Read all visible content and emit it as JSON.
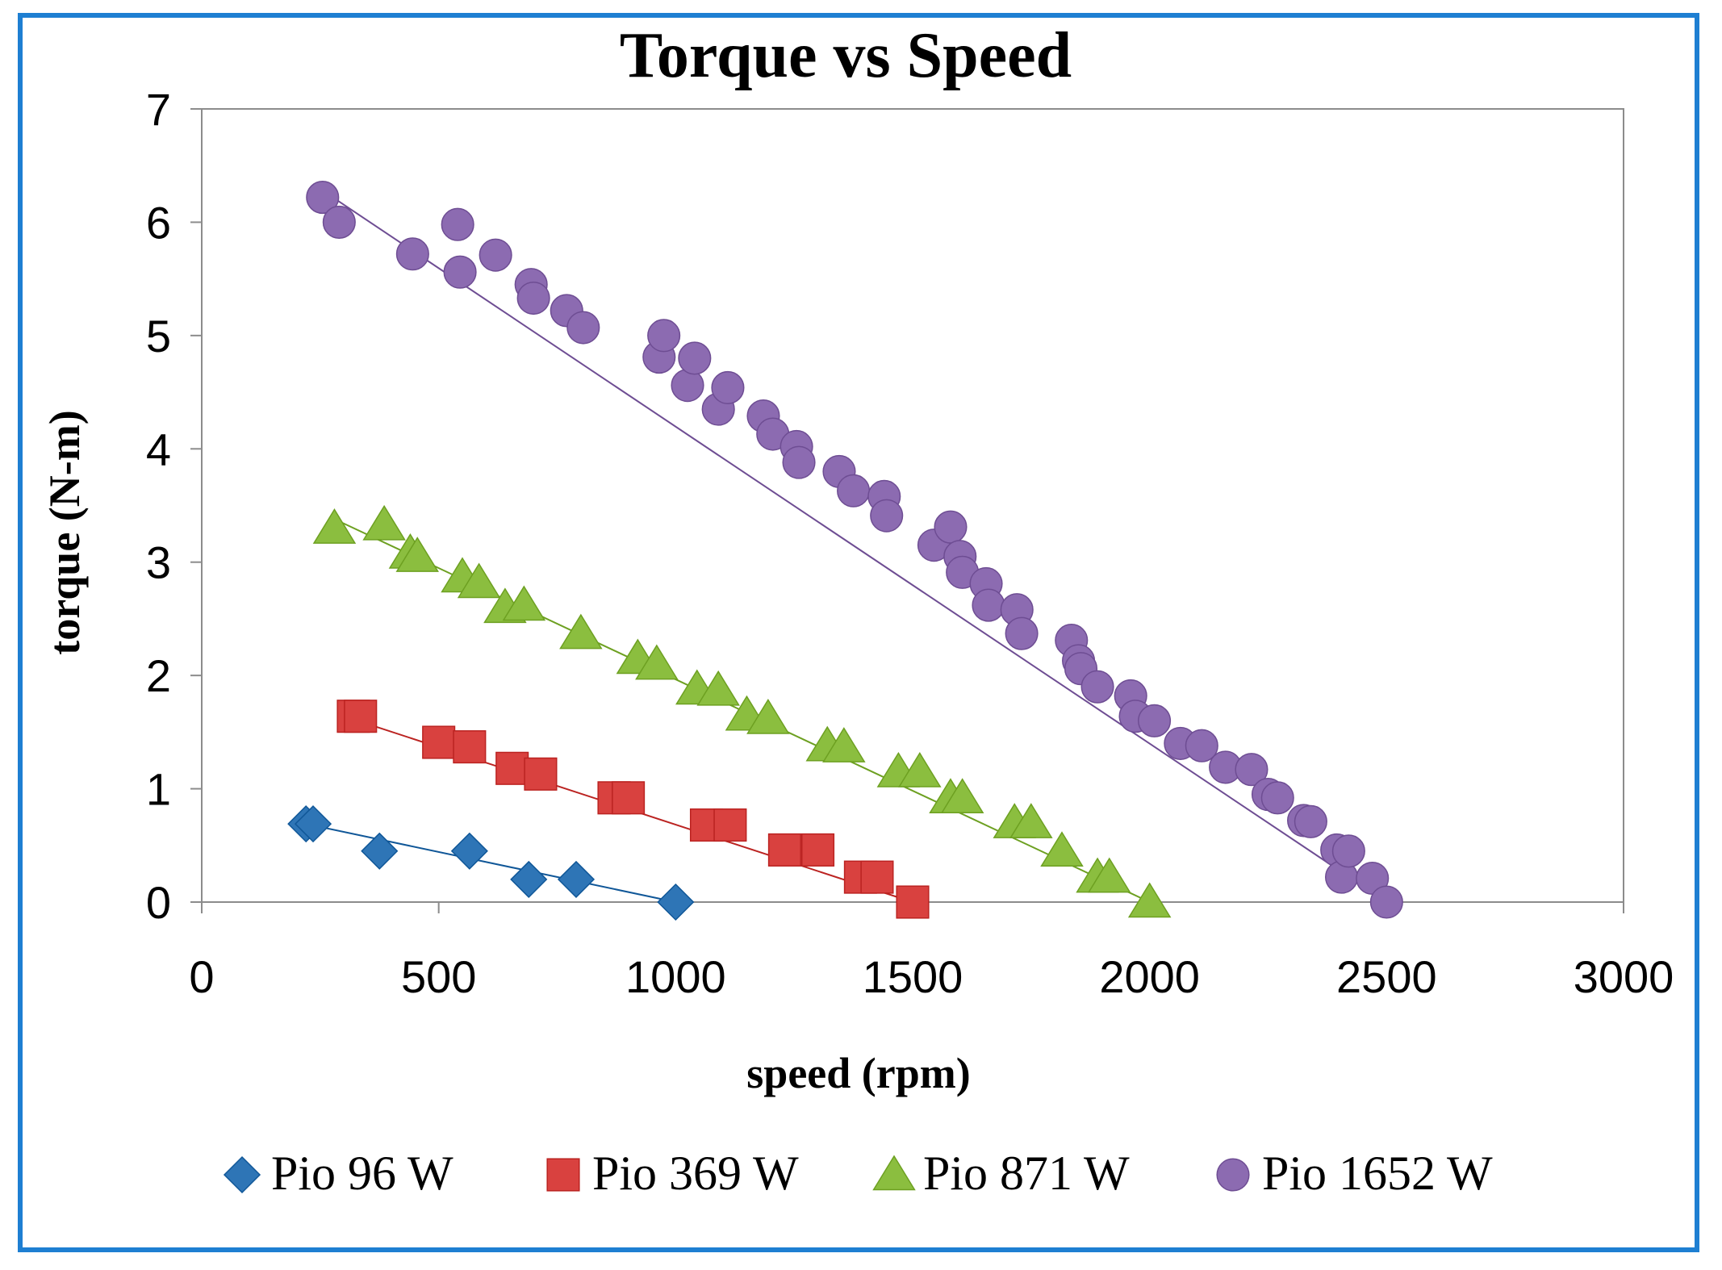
{
  "chart_data": {
    "type": "scatter",
    "title": "Torque vs Speed",
    "xlabel": "speed (rpm)",
    "ylabel": "torque (N-m)",
    "xlim": [
      0,
      3000
    ],
    "ylim": [
      0,
      7
    ],
    "xticks": [
      "0",
      "500",
      "1000",
      "1500",
      "2000",
      "2500",
      "3000"
    ],
    "yticks": [
      "0",
      "1",
      "2",
      "3",
      "4",
      "5",
      "6",
      "7"
    ],
    "grid": false,
    "legend_position": "bottom",
    "series": [
      {
        "name": "Pio 96 W",
        "marker": "diamond",
        "color": "#2e75b6",
        "x": [
          220,
          235,
          375,
          565,
          690,
          790,
          1000
        ],
        "y": [
          0.69,
          0.69,
          0.45,
          0.45,
          0.2,
          0.2,
          0.0
        ],
        "trendline": {
          "x": [
            220,
            1000
          ],
          "y": [
            0.69,
            0.0
          ]
        }
      },
      {
        "name": "Pio 369 W",
        "marker": "square",
        "color": "#d9413f",
        "x": [
          320,
          335,
          500,
          565,
          655,
          715,
          870,
          900,
          1065,
          1115,
          1230,
          1300,
          1390,
          1425,
          1500
        ],
        "y": [
          1.64,
          1.64,
          1.41,
          1.37,
          1.18,
          1.13,
          0.92,
          0.92,
          0.68,
          0.68,
          0.46,
          0.46,
          0.22,
          0.22,
          0.0
        ],
        "trendline": {
          "x": [
            300,
            1500
          ],
          "y": [
            1.64,
            0.0
          ]
        }
      },
      {
        "name": "Pio 871 W",
        "marker": "triangle",
        "color": "#8bbe3f",
        "x": [
          280,
          385,
          440,
          455,
          550,
          585,
          640,
          680,
          800,
          920,
          960,
          1045,
          1090,
          1150,
          1195,
          1320,
          1355,
          1470,
          1515,
          1580,
          1605,
          1715,
          1750,
          1815,
          1890,
          1915,
          2000
        ],
        "y": [
          3.3,
          3.33,
          3.08,
          3.05,
          2.87,
          2.82,
          2.6,
          2.62,
          2.37,
          2.15,
          2.1,
          1.88,
          1.87,
          1.65,
          1.62,
          1.38,
          1.37,
          1.15,
          1.15,
          0.92,
          0.92,
          0.7,
          0.7,
          0.45,
          0.22,
          0.22,
          0.0
        ],
        "trendline": {
          "x": [
            280,
            2000
          ],
          "y": [
            3.38,
            0.0
          ]
        }
      },
      {
        "name": "Pio 1652 W",
        "marker": "circle",
        "color": "#8c6bb1",
        "x": [
          255,
          290,
          445,
          540,
          545,
          620,
          695,
          700,
          770,
          805,
          965,
          975,
          1025,
          1040,
          1090,
          1110,
          1185,
          1205,
          1255,
          1260,
          1345,
          1375,
          1440,
          1445,
          1545,
          1580,
          1600,
          1605,
          1655,
          1660,
          1720,
          1730,
          1835,
          1850,
          1855,
          1890,
          1960,
          1970,
          2010,
          2065,
          2110,
          2160,
          2215,
          2250,
          2270,
          2325,
          2340,
          2395,
          2405,
          2420,
          2470,
          2500
        ],
        "y": [
          6.22,
          6.0,
          5.72,
          5.98,
          5.56,
          5.71,
          5.45,
          5.33,
          5.22,
          5.07,
          4.81,
          5.0,
          4.56,
          4.8,
          4.35,
          4.54,
          4.29,
          4.13,
          4.02,
          3.88,
          3.8,
          3.63,
          3.58,
          3.41,
          3.15,
          3.31,
          3.05,
          2.91,
          2.81,
          2.62,
          2.58,
          2.37,
          2.31,
          2.13,
          2.06,
          1.9,
          1.82,
          1.64,
          1.6,
          1.4,
          1.38,
          1.19,
          1.17,
          0.95,
          0.92,
          0.72,
          0.71,
          0.46,
          0.22,
          0.45,
          0.21,
          0.0
        ],
        "trendline": {
          "x": [
            255,
            2500
          ],
          "y": [
            6.28,
            0.0
          ]
        }
      }
    ]
  }
}
